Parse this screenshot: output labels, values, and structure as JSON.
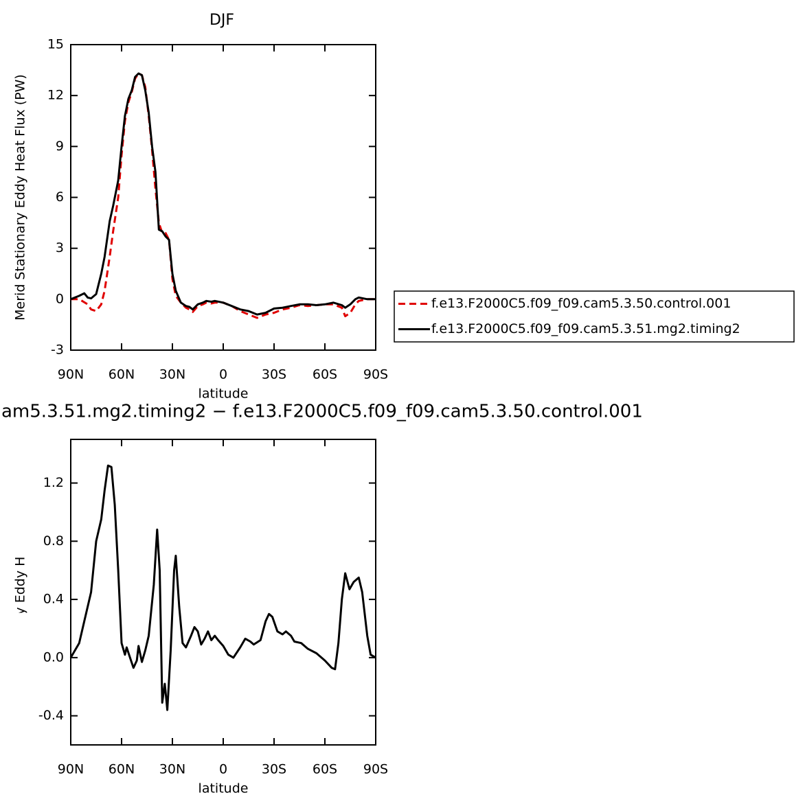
{
  "chart_data": [
    {
      "type": "line",
      "title": "DJF",
      "xlabel": "latitude",
      "ylabel": "Merid Stationary Eddy Heat Flux (PW)",
      "xlim": [
        90,
        -90
      ],
      "ylim": [
        -3,
        15
      ],
      "xticks": [
        {
          "value": 90,
          "label": "90N"
        },
        {
          "value": 60,
          "label": "60N"
        },
        {
          "value": 30,
          "label": "30N"
        },
        0,
        {
          "value": -30,
          "label": "30S"
        },
        {
          "value": -60,
          "label": "60S"
        },
        {
          "value": -90,
          "label": "90S"
        }
      ],
      "yticks": [
        -3,
        0,
        3,
        6,
        9,
        12,
        15
      ],
      "legend": "right",
      "series": [
        {
          "name": "f.e13.F2000C5.f09_f09.cam5.3.50.control.001",
          "color": "#e00000",
          "line_style": "dashed",
          "x": [
            90,
            85,
            80,
            78,
            75,
            72,
            70,
            67,
            65,
            62,
            60,
            58,
            56,
            54,
            52,
            50,
            48,
            46,
            44,
            42,
            40,
            38,
            36,
            34,
            32,
            30,
            28,
            25,
            22,
            20,
            18,
            15,
            12,
            10,
            7,
            5,
            0,
            -5,
            -10,
            -15,
            -20,
            -25,
            -30,
            -35,
            -40,
            -45,
            -50,
            -55,
            -60,
            -65,
            -70,
            -72,
            -75,
            -78,
            -80,
            -85,
            -90
          ],
          "values": [
            0,
            0,
            -0.3,
            -0.6,
            -0.7,
            -0.3,
            0.5,
            2.5,
            4,
            6,
            8.5,
            10.5,
            11.6,
            12.2,
            13,
            13.3,
            13.2,
            12.5,
            10.8,
            8.8,
            6.5,
            4.5,
            3.9,
            3.9,
            3.5,
            1.2,
            0.2,
            -0.2,
            -0.5,
            -0.6,
            -0.75,
            -0.4,
            -0.3,
            -0.2,
            -0.25,
            -0.2,
            -0.2,
            -0.4,
            -0.7,
            -0.9,
            -1.1,
            -0.9,
            -0.8,
            -0.6,
            -0.5,
            -0.35,
            -0.4,
            -0.35,
            -0.3,
            -0.3,
            -0.5,
            -1,
            -0.8,
            -0.3,
            -0.1,
            0,
            0
          ]
        },
        {
          "name": "f.e13.F2000C5.f09_f09.cam5.3.51.mg2.timing2",
          "color": "#000000",
          "line_style": "solid",
          "x": [
            90,
            85,
            82,
            80,
            78,
            75,
            72,
            70,
            67,
            65,
            62,
            60,
            58,
            56,
            54,
            52,
            50,
            48,
            46,
            44,
            42,
            40,
            38,
            36,
            34,
            32,
            30,
            28,
            25,
            22,
            20,
            18,
            15,
            12,
            10,
            7,
            5,
            0,
            -5,
            -10,
            -15,
            -20,
            -25,
            -30,
            -35,
            -40,
            -45,
            -50,
            -55,
            -60,
            -65,
            -70,
            -72,
            -75,
            -78,
            -80,
            -85,
            -90
          ],
          "values": [
            0,
            0.2,
            0.35,
            0.1,
            0.05,
            0.3,
            1.5,
            2.5,
            4.6,
            5.5,
            7,
            9,
            10.8,
            11.8,
            12.3,
            13.1,
            13.3,
            13.2,
            12.3,
            11,
            9,
            7.5,
            4.1,
            4,
            3.7,
            3.5,
            1.5,
            0.5,
            -0.2,
            -0.4,
            -0.45,
            -0.6,
            -0.3,
            -0.2,
            -0.1,
            -0.15,
            -0.1,
            -0.2,
            -0.4,
            -0.6,
            -0.7,
            -0.9,
            -0.8,
            -0.55,
            -0.5,
            -0.4,
            -0.3,
            -0.3,
            -0.35,
            -0.3,
            -0.2,
            -0.35,
            -0.5,
            -0.3,
            0,
            0.1,
            0,
            0
          ]
        }
      ]
    },
    {
      "type": "line",
      "title": "am5.3.51.mg2.timing2 − f.e13.F2000C5.f09_f09.cam5.3.50.control.001",
      "xlabel": "latitude",
      "ylabel": "Merid Stationary Eddy Heat Flux (PW)",
      "xlim": [
        90,
        -90
      ],
      "ylim": [
        -0.6,
        1.5
      ],
      "xticks": [
        {
          "value": 90,
          "label": "90N"
        },
        {
          "value": 60,
          "label": "60N"
        },
        {
          "value": 30,
          "label": "30N"
        },
        0,
        {
          "value": -30,
          "label": "30S"
        },
        {
          "value": -60,
          "label": "60S"
        },
        {
          "value": -90,
          "label": "90S"
        }
      ],
      "yticks": [
        -0.4,
        {
          "value": 0,
          "label": "0.0"
        },
        0.4,
        0.8,
        1.2
      ],
      "series": [
        {
          "color": "#000000",
          "line_style": "solid",
          "x": [
            90,
            85,
            82,
            78,
            75,
            72,
            70,
            68,
            66,
            64,
            62,
            60,
            58,
            57,
            55,
            53,
            51,
            50,
            48,
            46,
            44,
            41,
            39,
            37.5,
            36,
            34.5,
            33,
            31,
            29,
            28,
            26,
            24,
            22,
            19,
            17,
            15,
            13,
            11,
            9,
            7,
            5,
            3,
            0,
            -3,
            -6,
            -10,
            -13,
            -16,
            -18,
            -22,
            -25,
            -27,
            -29,
            -32,
            -35,
            -37,
            -40,
            -42,
            -46,
            -50,
            -55,
            -60,
            -64,
            -66,
            -68,
            -70,
            -72,
            -74.5,
            -77,
            -80,
            -82,
            -85,
            -87,
            -90
          ],
          "values": [
            0,
            0.1,
            0.25,
            0.45,
            0.8,
            0.95,
            1.15,
            1.32,
            1.31,
            1.05,
            0.6,
            0.1,
            0.02,
            0.07,
            0,
            -0.07,
            -0.02,
            0.08,
            -0.03,
            0.05,
            0.15,
            0.5,
            0.88,
            0.6,
            -0.31,
            -0.18,
            -0.36,
            0.05,
            0.6,
            0.7,
            0.35,
            0.1,
            0.07,
            0.15,
            0.21,
            0.18,
            0.09,
            0.13,
            0.18,
            0.12,
            0.15,
            0.12,
            0.08,
            0.02,
            0,
            0.07,
            0.13,
            0.11,
            0.09,
            0.12,
            0.25,
            0.3,
            0.28,
            0.18,
            0.16,
            0.18,
            0.15,
            0.11,
            0.1,
            0.06,
            0.03,
            -0.02,
            -0.07,
            -0.08,
            0.1,
            0.4,
            0.58,
            0.47,
            0.52,
            0.55,
            0.45,
            0.15,
            0.02,
            0
          ]
        }
      ]
    }
  ]
}
